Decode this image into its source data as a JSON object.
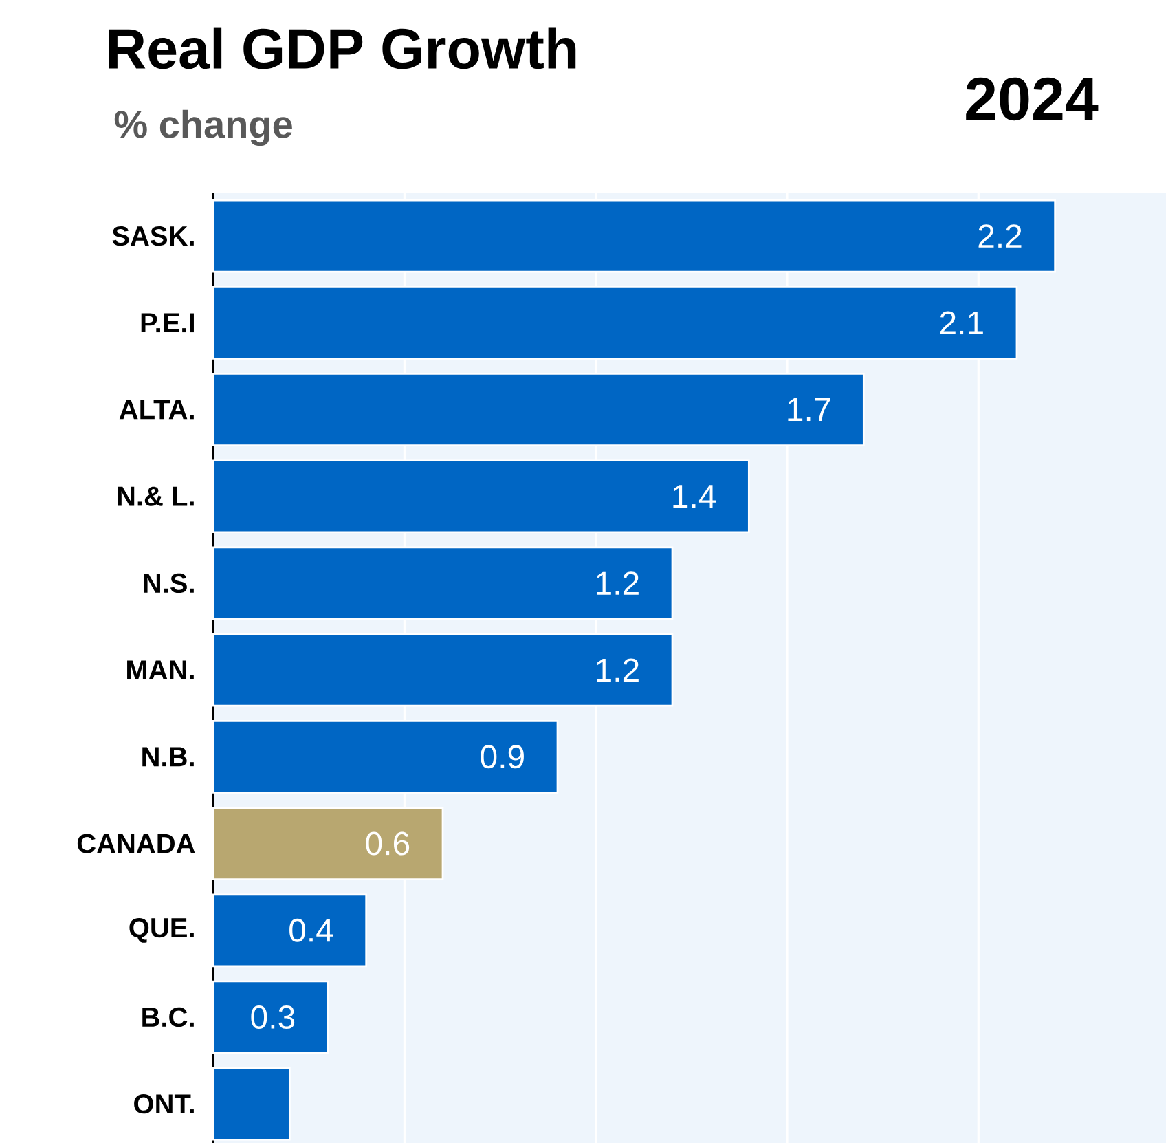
{
  "chart_data": {
    "type": "bar",
    "orientation": "horizontal",
    "title": "Real GDP Growth",
    "subtitle": "% change",
    "annotations": [
      "2024"
    ],
    "categories": [
      "SASK.",
      "P.E.I",
      "ALTA.",
      "N.& L.",
      "N.S.",
      "MAN.",
      "N.B.",
      "CANADA",
      "QUE.",
      "B.C.",
      "ONT."
    ],
    "values": [
      2.2,
      2.1,
      1.7,
      1.4,
      1.2,
      1.2,
      0.9,
      0.6,
      0.4,
      0.3,
      0.2
    ],
    "colors": [
      "#0066c4",
      "#0066c4",
      "#0066c4",
      "#0066c4",
      "#0066c4",
      "#0066c4",
      "#0066c4",
      "#b8a770",
      "#0066c4",
      "#0066c4",
      "#0066c4"
    ],
    "value_labels": [
      "2.2",
      "2.1",
      "1.7",
      "1.4",
      "1.2",
      "1.2",
      "0.9",
      "0.6",
      "0.4",
      "0.3",
      null
    ],
    "xlim": [
      0,
      2.49
    ],
    "xticks": [
      {
        "value": 0.5,
        "label": null
      },
      {
        "value": 1.0,
        "label": null
      },
      {
        "value": 1.5,
        "label": null
      },
      {
        "value": 2.0,
        "label": null
      }
    ],
    "grid": "x",
    "tick_labels": "y"
  }
}
